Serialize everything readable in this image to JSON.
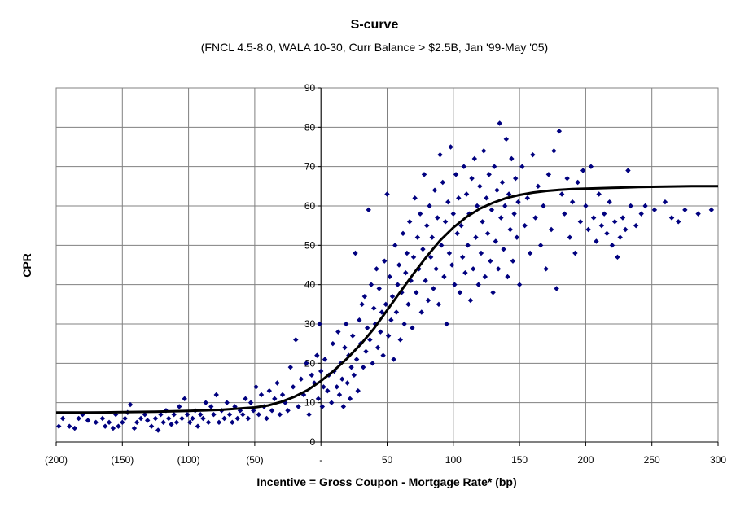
{
  "chart_data": {
    "type": "scatter",
    "title": "S-curve",
    "subtitle": "(FNCL 4.5-8.0, WALA 10-30, Curr Balance > $2.5B, Jan '99-May '05)",
    "xlabel": "Incentive = Gross Coupon - Mortgage Rate* (bp)",
    "ylabel": "CPR",
    "xlim": [
      -200,
      300
    ],
    "ylim": [
      0,
      90
    ],
    "grid": true,
    "x_tick_labels": [
      "(200)",
      "(150)",
      "(100)",
      "(50)",
      "-",
      "50",
      "100",
      "150",
      "200",
      "250",
      "300"
    ],
    "y_tick_labels": [
      "0",
      "10",
      "20",
      "30",
      "40",
      "50",
      "60",
      "70",
      "80",
      "90"
    ],
    "colors": {
      "points": "#00007f",
      "curve": "#000000",
      "grid": "#808080"
    },
    "series": [
      {
        "kind": "scatter",
        "points": [
          [
            -198,
            4
          ],
          [
            -195,
            6
          ],
          [
            -190,
            4
          ],
          [
            -186,
            3.5
          ],
          [
            -183,
            6
          ],
          [
            -180,
            7
          ],
          [
            -176,
            5.5
          ],
          [
            -170,
            5
          ],
          [
            -165,
            6
          ],
          [
            -163,
            4
          ],
          [
            -160,
            5
          ],
          [
            -157,
            3.5
          ],
          [
            -155,
            7
          ],
          [
            -153,
            4
          ],
          [
            -150,
            5
          ],
          [
            -148,
            6
          ],
          [
            -146,
            7.5
          ],
          [
            -144,
            9.5
          ],
          [
            -141,
            3.5
          ],
          [
            -139,
            5
          ],
          [
            -136,
            6
          ],
          [
            -133,
            7
          ],
          [
            -131,
            5.5
          ],
          [
            -128,
            4
          ],
          [
            -125,
            6
          ],
          [
            -123,
            3
          ],
          [
            -121,
            7
          ],
          [
            -119,
            5
          ],
          [
            -117,
            8
          ],
          [
            -115,
            6
          ],
          [
            -113,
            4.5
          ],
          [
            -111,
            7
          ],
          [
            -109,
            5
          ],
          [
            -107,
            9
          ],
          [
            -105,
            6
          ],
          [
            -103,
            11
          ],
          [
            -101,
            7
          ],
          [
            -99,
            5
          ],
          [
            -97,
            6
          ],
          [
            -95,
            8
          ],
          [
            -93,
            4
          ],
          [
            -91,
            7
          ],
          [
            -89,
            6
          ],
          [
            -87,
            10
          ],
          [
            -85,
            5
          ],
          [
            -83,
            9
          ],
          [
            -81,
            7
          ],
          [
            -79,
            12
          ],
          [
            -77,
            5
          ],
          [
            -75,
            8
          ],
          [
            -73,
            6
          ],
          [
            -71,
            10
          ],
          [
            -69,
            7
          ],
          [
            -67,
            5
          ],
          [
            -65,
            9
          ],
          [
            -63,
            6
          ],
          [
            -61,
            8
          ],
          [
            -59,
            7
          ],
          [
            -57,
            11
          ],
          [
            -55,
            6
          ],
          [
            -53,
            10
          ],
          [
            -51,
            8
          ],
          [
            -49,
            14
          ],
          [
            -47,
            7
          ],
          [
            -45,
            12
          ],
          [
            -43,
            9
          ],
          [
            -41,
            6
          ],
          [
            -39,
            13
          ],
          [
            -37,
            8
          ],
          [
            -35,
            11
          ],
          [
            -33,
            15
          ],
          [
            -31,
            7
          ],
          [
            -29,
            12
          ],
          [
            -27,
            10
          ],
          [
            -25,
            8
          ],
          [
            -23,
            19
          ],
          [
            -21,
            14
          ],
          [
            -19,
            26
          ],
          [
            -17,
            9
          ],
          [
            -15,
            16
          ],
          [
            -13,
            12
          ],
          [
            -11,
            20
          ],
          [
            -9,
            7
          ],
          [
            -7,
            17
          ],
          [
            -5,
            15
          ],
          [
            -3,
            22
          ],
          [
            -2,
            11
          ],
          [
            -1,
            30
          ],
          [
            0,
            18
          ],
          [
            1,
            9
          ],
          [
            2,
            14
          ],
          [
            3,
            21
          ],
          [
            5,
            13
          ],
          [
            6,
            17
          ],
          [
            8,
            10
          ],
          [
            9,
            25
          ],
          [
            10,
            18
          ],
          [
            12,
            14
          ],
          [
            13,
            28
          ],
          [
            14,
            12
          ],
          [
            15,
            20
          ],
          [
            16,
            16
          ],
          [
            17,
            9
          ],
          [
            18,
            24
          ],
          [
            19,
            30
          ],
          [
            20,
            15
          ],
          [
            21,
            22
          ],
          [
            22,
            11
          ],
          [
            23,
            19
          ],
          [
            24,
            27
          ],
          [
            25,
            17
          ],
          [
            26,
            48
          ],
          [
            27,
            21
          ],
          [
            28,
            13
          ],
          [
            29,
            31
          ],
          [
            30,
            25
          ],
          [
            31,
            35
          ],
          [
            32,
            19
          ],
          [
            33,
            37
          ],
          [
            34,
            23
          ],
          [
            35,
            29
          ],
          [
            36,
            59
          ],
          [
            37,
            26
          ],
          [
            38,
            40
          ],
          [
            39,
            20
          ],
          [
            40,
            34
          ],
          [
            41,
            30
          ],
          [
            42,
            44
          ],
          [
            43,
            24
          ],
          [
            44,
            39
          ],
          [
            45,
            28
          ],
          [
            46,
            33
          ],
          [
            47,
            22
          ],
          [
            48,
            46
          ],
          [
            49,
            35
          ],
          [
            50,
            63
          ],
          [
            51,
            27
          ],
          [
            52,
            42
          ],
          [
            53,
            31
          ],
          [
            54,
            37
          ],
          [
            55,
            21
          ],
          [
            56,
            50
          ],
          [
            57,
            33
          ],
          [
            58,
            40
          ],
          [
            59,
            45
          ],
          [
            60,
            26
          ],
          [
            61,
            38
          ],
          [
            62,
            53
          ],
          [
            63,
            30
          ],
          [
            64,
            43
          ],
          [
            65,
            48
          ],
          [
            66,
            35
          ],
          [
            67,
            56
          ],
          [
            68,
            41
          ],
          [
            69,
            29
          ],
          [
            70,
            47
          ],
          [
            71,
            62
          ],
          [
            72,
            38
          ],
          [
            73,
            52
          ],
          [
            74,
            44
          ],
          [
            75,
            58
          ],
          [
            76,
            33
          ],
          [
            77,
            49
          ],
          [
            78,
            68
          ],
          [
            79,
            41
          ],
          [
            80,
            55
          ],
          [
            81,
            36
          ],
          [
            82,
            60
          ],
          [
            83,
            47
          ],
          [
            84,
            52
          ],
          [
            85,
            39
          ],
          [
            86,
            64
          ],
          [
            87,
            44
          ],
          [
            88,
            57
          ],
          [
            89,
            35
          ],
          [
            90,
            73
          ],
          [
            91,
            50
          ],
          [
            92,
            66
          ],
          [
            93,
            42
          ],
          [
            94,
            56
          ],
          [
            95,
            30
          ],
          [
            96,
            61
          ],
          [
            97,
            48
          ],
          [
            98,
            75
          ],
          [
            99,
            45
          ],
          [
            100,
            58
          ],
          [
            101,
            40
          ],
          [
            102,
            68
          ],
          [
            103,
            53
          ],
          [
            104,
            62
          ],
          [
            105,
            38
          ],
          [
            106,
            55
          ],
          [
            107,
            47
          ],
          [
            108,
            70
          ],
          [
            109,
            43
          ],
          [
            110,
            63
          ],
          [
            111,
            50
          ],
          [
            112,
            58
          ],
          [
            113,
            36
          ],
          [
            114,
            67
          ],
          [
            115,
            44
          ],
          [
            116,
            72
          ],
          [
            117,
            52
          ],
          [
            118,
            60
          ],
          [
            119,
            40
          ],
          [
            120,
            65
          ],
          [
            121,
            48
          ],
          [
            122,
            56
          ],
          [
            123,
            74
          ],
          [
            124,
            42
          ],
          [
            125,
            62
          ],
          [
            126,
            53
          ],
          [
            127,
            68
          ],
          [
            128,
            46
          ],
          [
            129,
            59
          ],
          [
            130,
            38
          ],
          [
            131,
            70
          ],
          [
            132,
            51
          ],
          [
            133,
            64
          ],
          [
            134,
            44
          ],
          [
            135,
            81
          ],
          [
            136,
            57
          ],
          [
            137,
            66
          ],
          [
            138,
            49
          ],
          [
            139,
            60
          ],
          [
            140,
            77
          ],
          [
            141,
            42
          ],
          [
            142,
            63
          ],
          [
            143,
            54
          ],
          [
            144,
            72
          ],
          [
            145,
            46
          ],
          [
            146,
            58
          ],
          [
            147,
            67
          ],
          [
            148,
            52
          ],
          [
            149,
            61
          ],
          [
            150,
            40
          ],
          [
            152,
            70
          ],
          [
            154,
            55
          ],
          [
            156,
            62
          ],
          [
            158,
            48
          ],
          [
            160,
            73
          ],
          [
            162,
            57
          ],
          [
            164,
            65
          ],
          [
            166,
            50
          ],
          [
            168,
            60
          ],
          [
            170,
            44
          ],
          [
            172,
            68
          ],
          [
            174,
            54
          ],
          [
            176,
            74
          ],
          [
            178,
            39
          ],
          [
            180,
            79
          ],
          [
            182,
            63
          ],
          [
            184,
            58
          ],
          [
            186,
            67
          ],
          [
            188,
            52
          ],
          [
            190,
            61
          ],
          [
            192,
            48
          ],
          [
            194,
            66
          ],
          [
            196,
            56
          ],
          [
            198,
            69
          ],
          [
            200,
            60
          ],
          [
            202,
            54
          ],
          [
            204,
            70
          ],
          [
            206,
            57
          ],
          [
            208,
            51
          ],
          [
            210,
            63
          ],
          [
            212,
            55
          ],
          [
            214,
            58
          ],
          [
            216,
            53
          ],
          [
            218,
            61
          ],
          [
            220,
            50
          ],
          [
            222,
            56
          ],
          [
            224,
            47
          ],
          [
            226,
            52
          ],
          [
            228,
            57
          ],
          [
            230,
            54
          ],
          [
            232,
            69
          ],
          [
            234,
            60
          ],
          [
            238,
            55
          ],
          [
            242,
            58
          ],
          [
            245,
            60
          ],
          [
            252,
            59
          ],
          [
            260,
            61
          ],
          [
            265,
            57
          ],
          [
            270,
            56
          ],
          [
            275,
            59
          ],
          [
            285,
            58
          ],
          [
            295,
            59
          ]
        ]
      },
      {
        "kind": "line",
        "points": [
          [
            -200,
            7.5
          ],
          [
            -175,
            7.5
          ],
          [
            -150,
            7.6
          ],
          [
            -125,
            7.7
          ],
          [
            -100,
            7.9
          ],
          [
            -75,
            8.2
          ],
          [
            -50,
            8.8
          ],
          [
            -40,
            9.3
          ],
          [
            -30,
            10.2
          ],
          [
            -20,
            11.5
          ],
          [
            -10,
            13.2
          ],
          [
            0,
            15.5
          ],
          [
            10,
            18.2
          ],
          [
            20,
            21.3
          ],
          [
            30,
            24.8
          ],
          [
            40,
            28.8
          ],
          [
            50,
            33.5
          ],
          [
            60,
            38.2
          ],
          [
            70,
            42.8
          ],
          [
            80,
            47.2
          ],
          [
            90,
            51.2
          ],
          [
            100,
            54.5
          ],
          [
            110,
            57.2
          ],
          [
            120,
            59.3
          ],
          [
            130,
            60.8
          ],
          [
            140,
            62.0
          ],
          [
            150,
            62.8
          ],
          [
            160,
            63.4
          ],
          [
            170,
            63.8
          ],
          [
            180,
            64.1
          ],
          [
            190,
            64.3
          ],
          [
            200,
            64.4
          ],
          [
            220,
            64.6
          ],
          [
            240,
            64.8
          ],
          [
            260,
            64.9
          ],
          [
            280,
            65.0
          ],
          [
            300,
            65.0
          ]
        ]
      }
    ]
  }
}
